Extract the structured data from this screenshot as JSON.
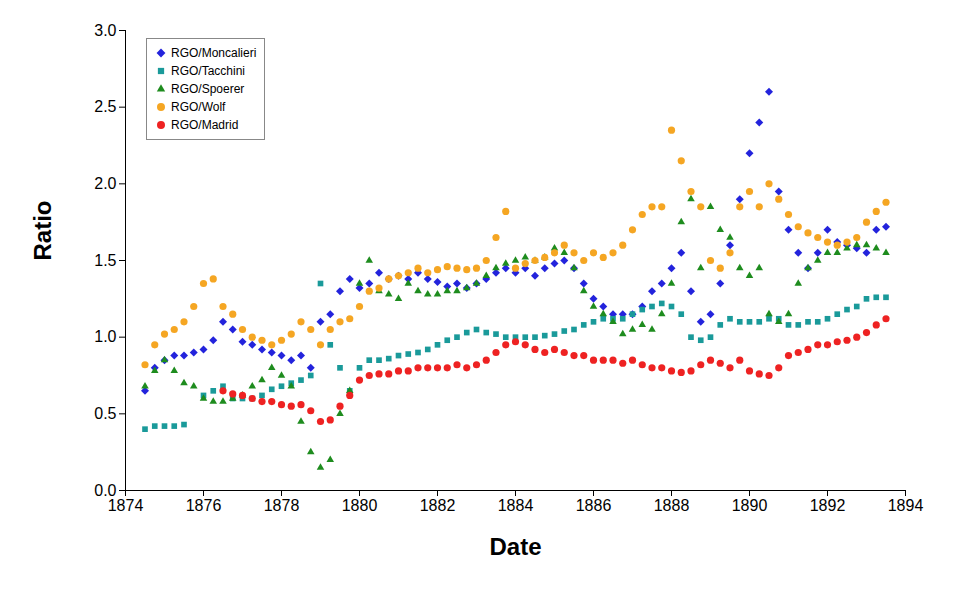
{
  "chart_data": {
    "type": "scatter",
    "x_label": "Date",
    "y_label": "Ratio",
    "xlim": [
      1874,
      1894
    ],
    "xticks": [
      1874,
      1876,
      1878,
      1880,
      1882,
      1884,
      1886,
      1888,
      1890,
      1892,
      1894
    ],
    "ylim": [
      0,
      3
    ],
    "yticks": [
      {
        "value": 0,
        "label": "0.0"
      },
      0.5,
      {
        "value": 1,
        "label": "1.0"
      },
      1.5,
      {
        "value": 2,
        "label": "2.0"
      },
      2.5,
      {
        "value": 3,
        "label": "3.0"
      }
    ],
    "grid": false,
    "legend": "top-left",
    "x": [
      1874.5,
      1874.75,
      1875,
      1875.25,
      1875.5,
      1875.75,
      1876,
      1876.25,
      1876.5,
      1876.75,
      1877,
      1877.25,
      1877.5,
      1877.75,
      1878,
      1878.25,
      1878.5,
      1878.75,
      1879,
      1879.25,
      1879.5,
      1879.75,
      1880,
      1880.25,
      1880.5,
      1880.75,
      1881,
      1881.25,
      1881.5,
      1881.75,
      1882,
      1882.25,
      1882.5,
      1882.75,
      1883,
      1883.25,
      1883.5,
      1883.75,
      1884,
      1884.25,
      1884.5,
      1884.75,
      1885,
      1885.25,
      1885.5,
      1885.75,
      1886,
      1886.25,
      1886.5,
      1886.75,
      1887,
      1887.25,
      1887.5,
      1887.75,
      1888,
      1888.25,
      1888.5,
      1888.75,
      1889,
      1889.25,
      1889.5,
      1889.75,
      1890,
      1890.25,
      1890.5,
      1890.75,
      1891,
      1891.25,
      1891.5,
      1891.75,
      1892,
      1892.25,
      1892.5,
      1892.75,
      1893,
      1893.25,
      1893.5
    ],
    "series": [
      {
        "name": "RGO/Moncalieri",
        "color": "#2323dc",
        "marker": "diamond",
        "values": [
          0.65,
          0.8,
          0.85,
          0.88,
          0.88,
          0.9,
          0.92,
          0.98,
          1.1,
          1.05,
          0.97,
          0.95,
          0.92,
          0.9,
          0.88,
          0.85,
          0.88,
          0.8,
          1.1,
          1.15,
          1.3,
          1.38,
          1.32,
          1.35,
          1.42,
          1.38,
          1.4,
          1.38,
          1.42,
          1.38,
          1.36,
          1.33,
          1.35,
          1.32,
          1.35,
          1.38,
          1.42,
          1.45,
          1.42,
          1.45,
          1.4,
          1.45,
          1.48,
          1.5,
          1.45,
          1.35,
          1.25,
          1.2,
          1.15,
          1.15,
          1.15,
          1.2,
          1.3,
          1.35,
          1.45,
          1.55,
          1.3,
          1.1,
          1.15,
          1.35,
          1.6,
          1.9,
          2.2,
          2.4,
          2.6,
          1.95,
          1.7,
          1.55,
          1.45,
          1.55,
          1.7,
          1.62,
          1.6,
          1.58,
          1.55,
          1.7,
          1.72
        ]
      },
      {
        "name": "RGO/Tacchini",
        "color": "#1a9a9a",
        "marker": "square",
        "values": [
          0.4,
          0.42,
          0.42,
          0.42,
          0.43,
          null,
          0.62,
          0.65,
          0.68,
          0.6,
          0.6,
          0.6,
          0.62,
          0.66,
          0.68,
          0.7,
          0.72,
          0.75,
          1.35,
          0.95,
          0.8,
          0.65,
          0.8,
          0.85,
          0.85,
          0.86,
          0.88,
          0.89,
          0.9,
          0.92,
          0.95,
          0.98,
          1.0,
          1.03,
          1.05,
          1.03,
          1.02,
          1.0,
          1.0,
          1.0,
          1.0,
          1.01,
          1.02,
          1.04,
          1.05,
          1.08,
          1.1,
          1.12,
          1.12,
          1.12,
          1.15,
          1.18,
          1.2,
          1.22,
          1.2,
          1.15,
          1.0,
          0.98,
          1.0,
          1.08,
          1.12,
          1.1,
          1.1,
          1.1,
          1.12,
          1.12,
          1.08,
          1.08,
          1.1,
          1.1,
          1.12,
          1.15,
          1.18,
          1.2,
          1.25,
          1.26,
          1.26
        ]
      },
      {
        "name": "RGO/Spoerer",
        "color": "#1e8c1e",
        "marker": "triangle",
        "values": [
          0.68,
          0.78,
          0.85,
          0.78,
          0.7,
          0.68,
          0.6,
          0.58,
          0.58,
          0.6,
          0.62,
          0.68,
          0.72,
          0.8,
          0.75,
          0.68,
          0.45,
          0.25,
          0.15,
          0.2,
          0.5,
          0.65,
          1.35,
          1.5,
          1.3,
          1.28,
          1.25,
          1.35,
          1.3,
          1.28,
          1.28,
          1.3,
          1.3,
          1.32,
          1.35,
          1.4,
          1.45,
          1.48,
          1.5,
          1.52,
          1.5,
          1.52,
          1.58,
          1.55,
          1.45,
          1.3,
          1.2,
          1.15,
          1.1,
          1.02,
          1.05,
          1.08,
          1.05,
          1.15,
          1.35,
          1.75,
          1.9,
          1.45,
          1.85,
          1.7,
          1.65,
          1.45,
          1.4,
          1.45,
          1.15,
          1.1,
          1.15,
          1.35,
          1.45,
          1.5,
          1.55,
          1.55,
          1.58,
          1.6,
          1.6,
          1.58,
          1.55
        ]
      },
      {
        "name": "RGO/Wolf",
        "color": "#f5a623",
        "marker": "circle",
        "values": [
          0.82,
          0.95,
          1.02,
          1.05,
          1.1,
          1.2,
          1.35,
          1.38,
          1.2,
          1.15,
          1.05,
          1.0,
          0.98,
          0.95,
          0.98,
          1.02,
          1.1,
          1.05,
          0.95,
          1.05,
          1.1,
          1.12,
          1.2,
          1.3,
          1.32,
          1.38,
          1.4,
          1.42,
          1.45,
          1.42,
          1.44,
          1.46,
          1.45,
          1.44,
          1.45,
          1.5,
          1.65,
          1.82,
          1.45,
          1.48,
          1.5,
          1.52,
          1.55,
          1.6,
          1.55,
          1.5,
          1.55,
          1.52,
          1.55,
          1.6,
          1.7,
          1.8,
          1.85,
          1.85,
          2.35,
          2.15,
          1.95,
          1.85,
          1.5,
          1.45,
          1.55,
          1.85,
          1.95,
          1.85,
          2.0,
          1.9,
          1.8,
          1.72,
          1.68,
          1.65,
          1.62,
          1.6,
          1.62,
          1.65,
          1.75,
          1.82,
          1.88
        ]
      },
      {
        "name": "RGO/Madrid",
        "color": "#ee2222",
        "marker": "circle",
        "values": [
          null,
          null,
          null,
          null,
          null,
          null,
          null,
          null,
          0.65,
          0.63,
          0.62,
          0.6,
          0.58,
          0.58,
          0.56,
          0.55,
          0.56,
          0.52,
          0.45,
          0.46,
          0.55,
          0.62,
          0.72,
          0.75,
          0.76,
          0.76,
          0.78,
          0.78,
          0.8,
          0.8,
          0.8,
          0.8,
          0.82,
          0.8,
          0.82,
          0.85,
          0.9,
          0.95,
          0.97,
          0.95,
          0.92,
          0.9,
          0.92,
          0.9,
          0.88,
          0.88,
          0.85,
          0.85,
          0.85,
          0.83,
          0.85,
          0.82,
          0.8,
          0.8,
          0.78,
          0.77,
          0.78,
          0.82,
          0.85,
          0.83,
          0.8,
          0.85,
          0.78,
          0.76,
          0.75,
          0.8,
          0.88,
          0.9,
          0.92,
          0.95,
          0.95,
          0.97,
          0.98,
          1.0,
          1.03,
          1.08,
          1.12
        ]
      }
    ]
  }
}
